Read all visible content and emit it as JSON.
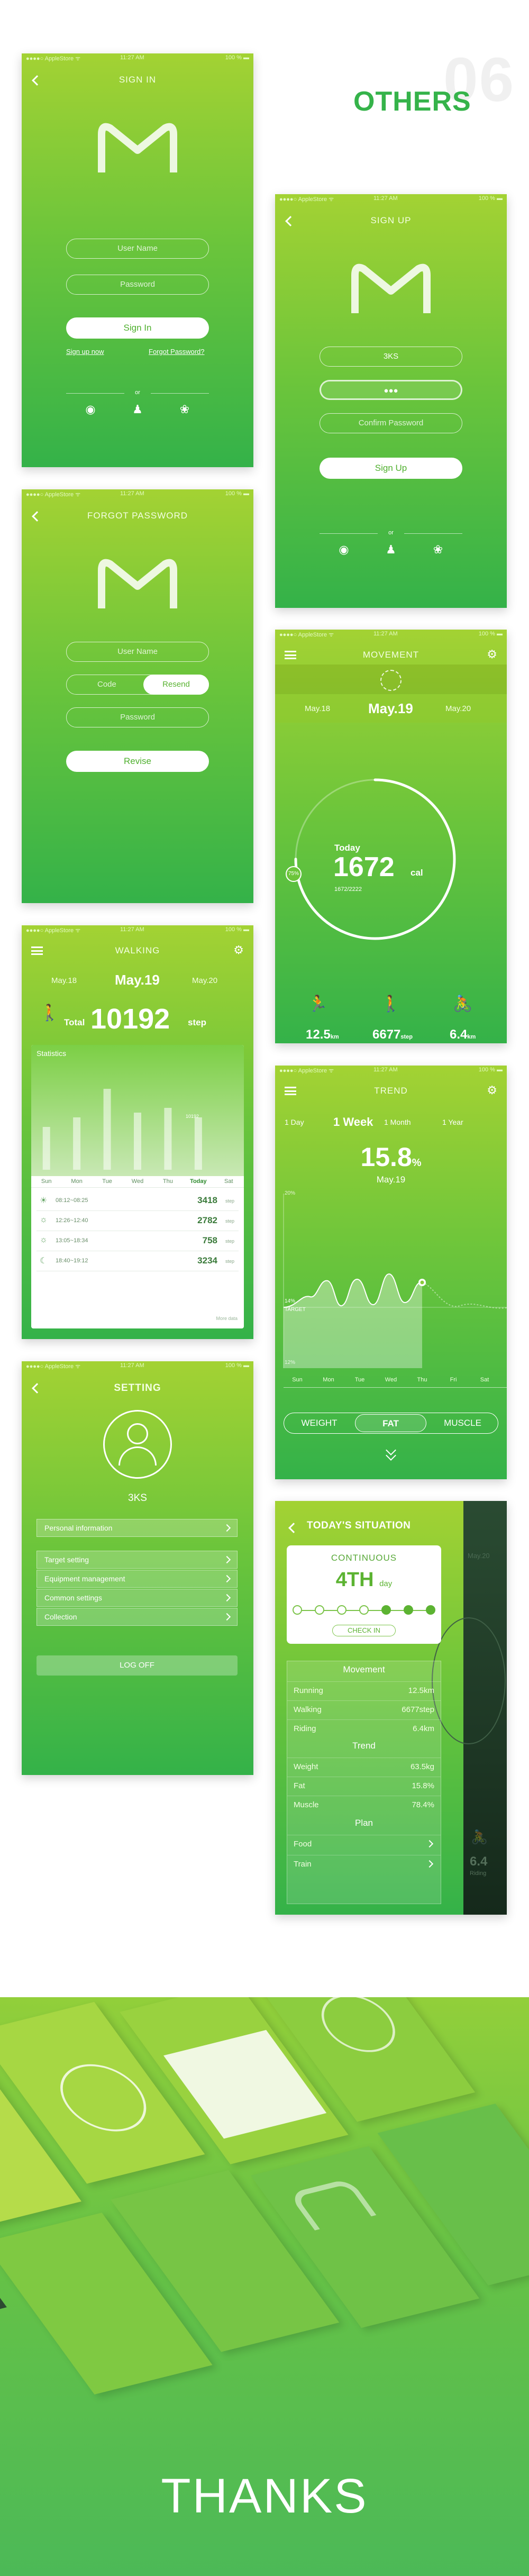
{
  "page": {
    "heading": "OTHERS",
    "section_number": "06",
    "closing": "THANKS"
  },
  "colors": {
    "accent_green": "#35b34a",
    "lime": "#a3d233",
    "dark_panel": "#203b28"
  },
  "status_bar": {
    "carrier": "●●●●○ AppleStore ᯤ",
    "time": "11:27 AM",
    "battery": "100 % ▬"
  },
  "signin": {
    "title": "SIGN IN",
    "username_placeholder": "User Name",
    "password_placeholder": "Password",
    "button": "Sign In",
    "signup_link": "Sign up now",
    "forgot_link": "Forgot Password?",
    "or": "or",
    "social_icons": [
      "weibo-icon",
      "qq-icon",
      "wechat-icon"
    ]
  },
  "signup": {
    "title": "SIGN UP",
    "username_value": "3KS",
    "password_dots": "●●●",
    "confirm_placeholder": "Confirm Password",
    "button": "Sign Up",
    "or": "or"
  },
  "forgot": {
    "title": "FORGOT PASSWORD",
    "username_placeholder": "User Name",
    "code_placeholder": "Code",
    "resend_button": "Resend",
    "password_placeholder": "Password",
    "button": "Revise"
  },
  "movement": {
    "title": "MOVEMENT",
    "date_prev": "May.18",
    "date_current": "May.19",
    "date_next": "May.20",
    "today_label": "Today",
    "today_value": "1672",
    "today_unit": "cal",
    "today_sub": "1672/2222",
    "percent_badge": "75%",
    "running_value": "12.5",
    "running_unit": "km",
    "walking_value": "6677",
    "walking_unit": "step",
    "riding_value": "6.4",
    "riding_unit": "km",
    "progress_fraction": 0.75
  },
  "walking": {
    "title": "WALKING",
    "date_prev": "May.18",
    "date_current": "May.19",
    "date_next": "May.20",
    "total_label": "Total",
    "total_value": "10192",
    "total_unit": "step",
    "stats_title": "Statistics",
    "bar_callout": "10192",
    "days": [
      "Sun",
      "Mon",
      "Tue",
      "Wed",
      "Thu",
      "Today",
      "Sat"
    ],
    "bar_values": [
      0.45,
      0.55,
      0.85,
      0.6,
      0.65,
      0.55,
      0
    ],
    "rows": [
      {
        "icon": "sunrise-icon",
        "time": "08:12~08:25",
        "value": "3418",
        "unit": "step"
      },
      {
        "icon": "sun-icon",
        "time": "12:26~12:40",
        "value": "2782",
        "unit": "step"
      },
      {
        "icon": "sun-icon",
        "time": "13:05~18:34",
        "value": "758",
        "unit": "step"
      },
      {
        "icon": "moon-icon",
        "time": "18:40~19:12",
        "value": "3234",
        "unit": "step"
      }
    ],
    "more": "More data"
  },
  "trend": {
    "title": "TREND",
    "periods": [
      "1 Day",
      "1 Week",
      "1 Month",
      "1 Year"
    ],
    "active_period": "1 Week",
    "value": "15.8",
    "unit": "%",
    "date": "May.19",
    "y_top": "20%",
    "y_mid": "14%",
    "target": "TARGET",
    "y_bottom": "12%",
    "days": [
      "Sun",
      "Mon",
      "Tue",
      "Wed",
      "Thu",
      "Fri",
      "Sat"
    ],
    "tabs": [
      "WEIGHT",
      "FAT",
      "MUSCLE"
    ],
    "active_tab": "FAT"
  },
  "setting": {
    "title": "SETTING",
    "username": "3KS",
    "items": [
      "Personal information",
      "Target setting",
      "Equipment management",
      "Common settings",
      "Collection"
    ],
    "logoff": "LOG OFF"
  },
  "situation": {
    "title": "TODAY'S SITUATION",
    "card_label": "CONTINUOUS",
    "card_value": "4TH",
    "card_unit": "day",
    "checkin": "CHECK IN",
    "movement_title": "Movement",
    "movement": [
      {
        "label": "Running",
        "value": "12.5km"
      },
      {
        "label": "Walking",
        "value": "6677step"
      },
      {
        "label": "Riding",
        "value": "6.4km"
      }
    ],
    "trend_title": "Trend",
    "trend": [
      {
        "label": "Weight",
        "value": "63.5kg"
      },
      {
        "label": "Fat",
        "value": "15.8%"
      },
      {
        "label": "Muscle",
        "value": "78.4%"
      }
    ],
    "plan_title": "Plan",
    "plan": [
      "Food",
      "Train"
    ],
    "side_value": "6.4",
    "side_label": "Riding",
    "side_date": "May.20"
  }
}
